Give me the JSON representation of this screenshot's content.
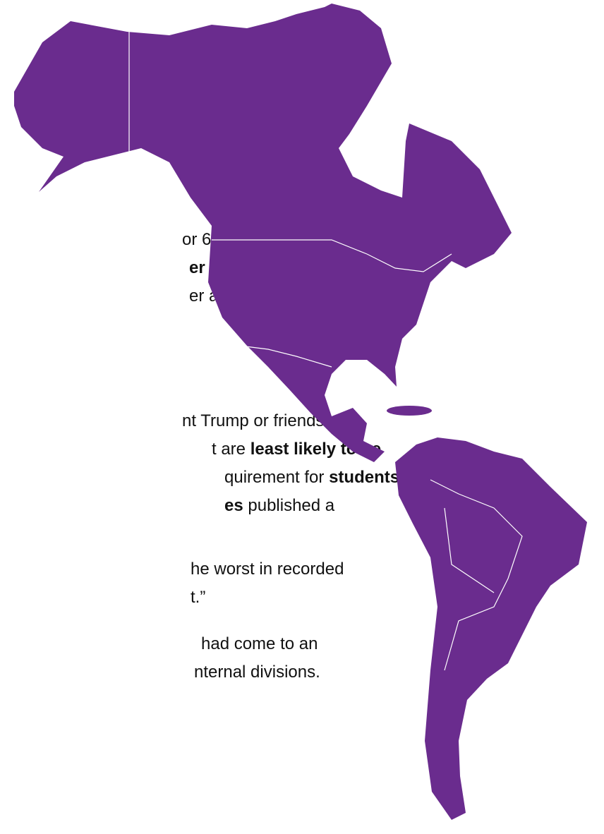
{
  "lines": [
    [
      {
        "text": "or 64 percent"
      }
    ],
    [
      {
        "text": "er vaccine",
        "bold": true
      }
    ],
    [
      {
        "text": "er agency’s"
      }
    ],
    [
      {
        "text": "nt Trump or friends and"
      }
    ],
    [
      {
        "text": "t are "
      },
      {
        "text": "least likely to be",
        "bold": true
      }
    ],
    [
      {
        "text": "quirement for "
      },
      {
        "text": "students",
        "bold": true
      }
    ],
    [
      {
        "text": "es",
        "bold": true
      },
      {
        "text": " published a"
      }
    ],
    [
      {
        "text": "he worst in recorded"
      }
    ],
    [
      {
        "text": "t.”"
      }
    ],
    [
      {
        "text": "had come to an"
      }
    ],
    [
      {
        "text": "nternal divisions."
      }
    ]
  ]
}
